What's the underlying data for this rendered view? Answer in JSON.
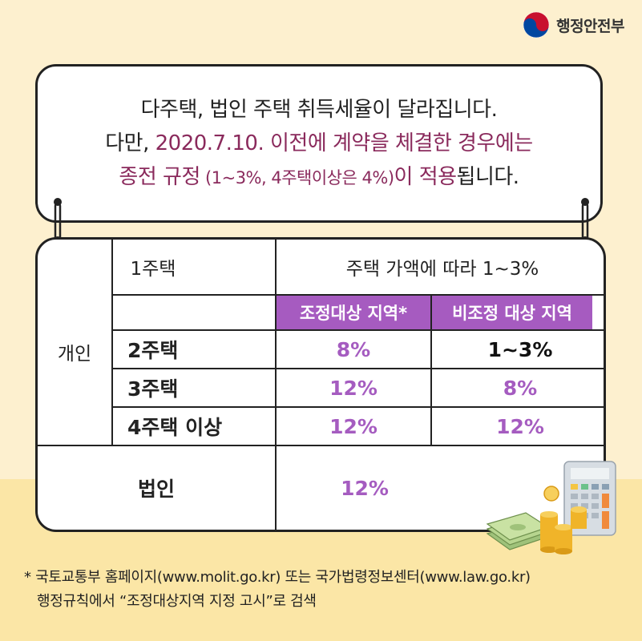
{
  "logo": {
    "text": "행정안전부",
    "icon": "taegeuk-emblem-icon"
  },
  "notice": {
    "line1": "다주택, 법인 주택 취득세율이 달라집니다.",
    "line2_prefix": "다만, ",
    "line2_highlight": "2020.7.10. 이전에 계약을 체결한 경우에는",
    "line3_a": "종전 규정",
    "line3_b": " (1~3%, 4주택이상은 4%)",
    "line3_c": "이 적용",
    "line3_d": "됩니다."
  },
  "table": {
    "individual_label": "개인",
    "corporate_label": "법인",
    "one_house": {
      "label": "1주택",
      "rate": "주택 가액에 따라 1~3%"
    },
    "header_adjusted": "조정대상 지역*",
    "header_non_adjusted": "비조정 대상 지역",
    "rows": [
      {
        "label": "2주택",
        "adjusted": "8%",
        "non_adjusted": "1~3%"
      },
      {
        "label": "3주택",
        "adjusted": "12%",
        "non_adjusted": "8%"
      },
      {
        "label": "4주택 이상",
        "adjusted": "12%",
        "non_adjusted": "12%"
      }
    ],
    "corporate_rate": "12%"
  },
  "footnote": {
    "line1": "* 국토교통부 홈페이지(www.molit.go.kr) 또는 국가법령정보센터(www.law.go.kr)",
    "line2": "행정규칙에서 “조정대상지역 지정 고시”로 검색"
  },
  "colors": {
    "accent_purple": "#a65bc0",
    "highlight_plum": "#8a2a5c",
    "background": "#fdf0cf"
  }
}
